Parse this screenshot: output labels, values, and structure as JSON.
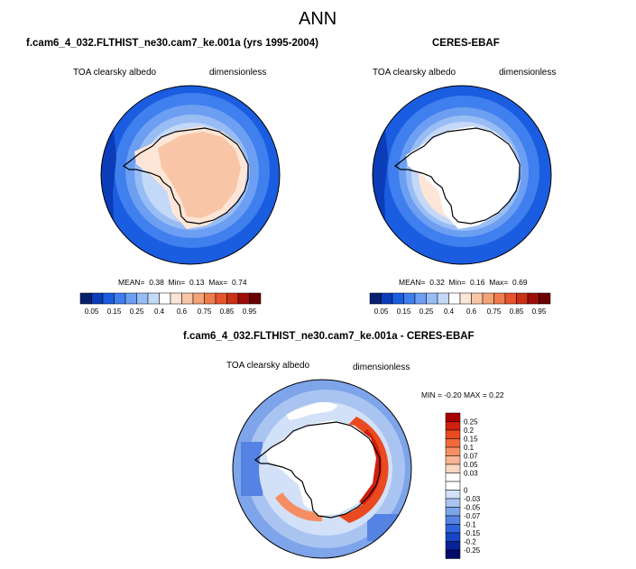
{
  "page": {
    "title": "ANN",
    "diff_title": "f.cam6_4_032.FLTHIST_ne30.cam7_ke.001a - CERES-EBAF"
  },
  "panels": {
    "model": {
      "heading": "f.cam6_4_032.FLTHIST_ne30.cam7_ke.001a (yrs 1995-2004)",
      "variable": "TOA clearsky albedo",
      "units": "dimensionless",
      "stats": {
        "mean_label": "MEAN=",
        "mean": "0.38",
        "min_label": "Min=",
        "min": "0.13",
        "max_label": "Max=",
        "max": "0.74"
      }
    },
    "obs": {
      "heading": "CERES-EBAF",
      "variable": "TOA clearsky albedo",
      "units": "dimensionless",
      "stats": {
        "mean_label": "MEAN=",
        "mean": "0.32",
        "min_label": "Min=",
        "min": "0.16",
        "max_label": "Max=",
        "max": "0.69"
      }
    },
    "diff": {
      "variable": "TOA clearsky albedo",
      "units": "dimensionless",
      "minmax": "MIN = -0.20 MAX =  0.22"
    }
  },
  "colorbar_abs": {
    "colors": [
      "#061f6e",
      "#0b3db8",
      "#1b5de0",
      "#3f7fee",
      "#6c9ef2",
      "#98bdf5",
      "#c4d8f8",
      "#ffffff",
      "#fde6d8",
      "#f8c6a6",
      "#f4a277",
      "#ef7c4c",
      "#e6552c",
      "#cc3015",
      "#9d0d0a",
      "#6b0000"
    ],
    "labels": [
      "0.05",
      "0.15",
      "0.25",
      "0.4",
      "0.6",
      "0.75",
      "0.85",
      "0.95"
    ]
  },
  "colorbar_diff": {
    "colors": [
      "#a80000",
      "#d21e0e",
      "#ea4a20",
      "#f26a3a",
      "#f58f63",
      "#f8b493",
      "#fbd7c3",
      "#ffffff",
      "#ffffff",
      "#d2e1f7",
      "#a9c4f1",
      "#7ea4ea",
      "#5583e3",
      "#2f63dc",
      "#1845c4",
      "#08229a",
      "#000a68"
    ],
    "labels": [
      "0.25",
      "0.2",
      "0.15",
      "0.1",
      "0.07",
      "0.05",
      "0.03",
      "0",
      "-0.03",
      "-0.05",
      "-0.07",
      "-0.1",
      "-0.15",
      "-0.2",
      "-0.25"
    ]
  }
}
